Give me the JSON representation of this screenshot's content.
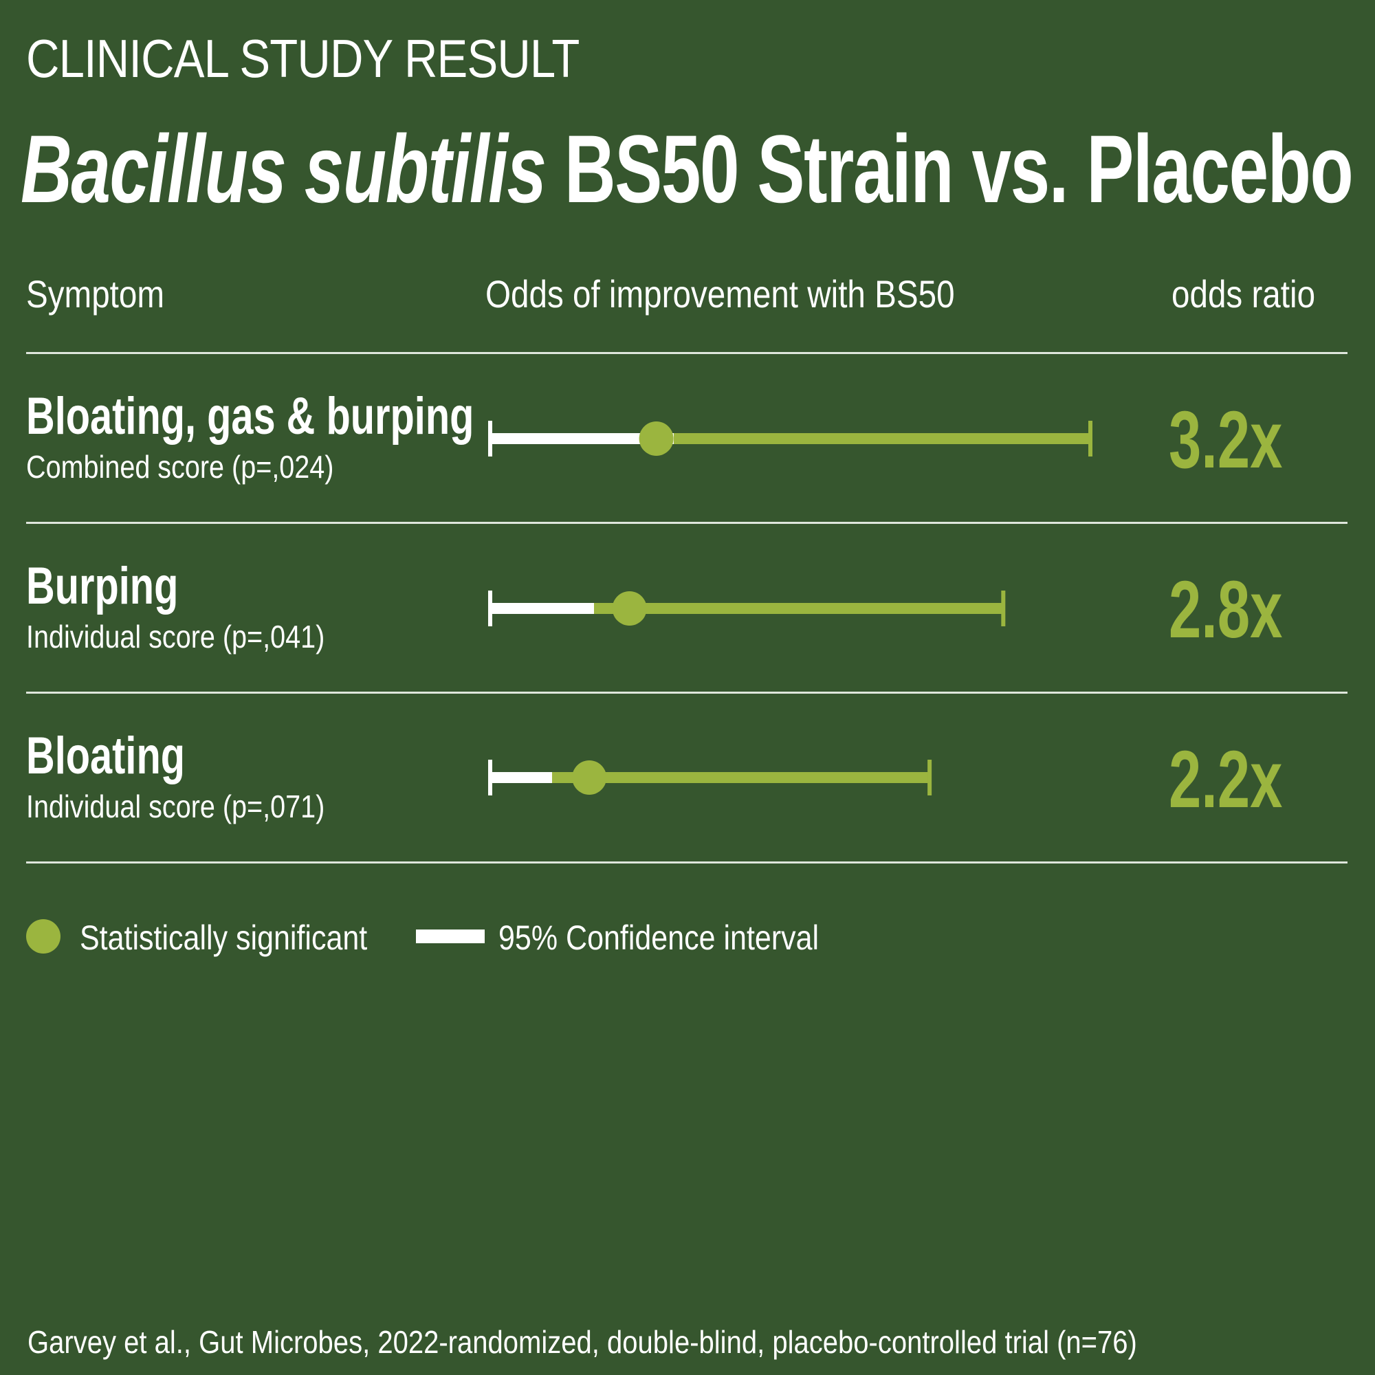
{
  "kicker": "CLINICAL STUDY RESULT",
  "title": {
    "italic_part": "Bacillus subtilis",
    "rest": " BS50 Strain vs. Placebo"
  },
  "columns": {
    "symptom": "Symptom",
    "odds_of_improvement": "Odds of improvement with BS50",
    "odds_ratio": "odds ratio"
  },
  "legend": {
    "significant": "Statistically significant",
    "confidence_interval": "95% Confidence interval"
  },
  "footnote": "Garvey et al., Gut Microbes, 2022-randomized, double-blind, placebo-controlled trial (n=76)",
  "colors": {
    "background": "#36562e",
    "accent": "#9bb53f",
    "white": "#ffffff"
  },
  "chart_data": {
    "type": "forest",
    "axis_range": [
      0.7,
      9.7
    ],
    "rows": [
      {
        "label": "Bloating, gas & burping",
        "subtitle": "Combined score (p=,024)",
        "odds_ratio": 3.2,
        "odds_label": "3.2x",
        "ci_low": 0.7,
        "ci_high": 9.7,
        "significant": true
      },
      {
        "label": "Burping",
        "subtitle": "Individual score (p=,041)",
        "odds_ratio": 2.8,
        "odds_label": "2.8x",
        "ci_low": 0.7,
        "ci_high": 8.4,
        "significant": true
      },
      {
        "label": "Bloating",
        "subtitle": "Individual score (p=,071)",
        "odds_ratio": 2.2,
        "odds_label": "2.2x",
        "ci_low": 0.7,
        "ci_high": 7.3,
        "significant": true
      }
    ]
  }
}
